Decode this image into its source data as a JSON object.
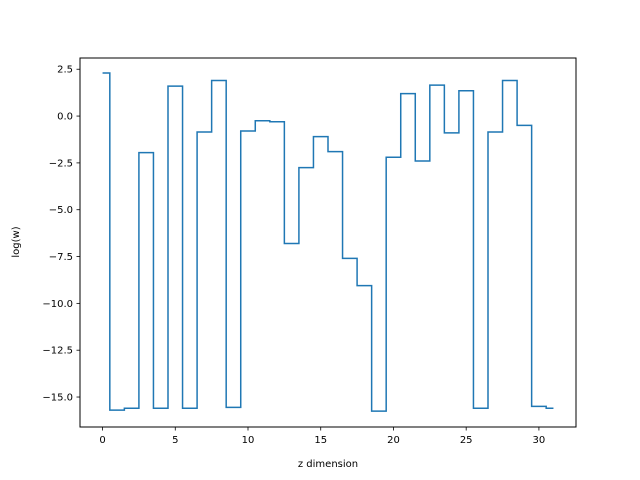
{
  "chart_data": {
    "type": "line",
    "drawstyle": "steps-mid",
    "title": "",
    "xlabel": "z dimension",
    "ylabel": "log(w)",
    "xlim": [
      -1.55,
      32.55
    ],
    "ylim": [
      -16.6,
      3.1
    ],
    "grid": false,
    "legend": "none",
    "color": "#1f77b4",
    "xticks": [
      0,
      5,
      10,
      15,
      20,
      25,
      30
    ],
    "xtick_labels": [
      "0",
      "5",
      "10",
      "15",
      "20",
      "25",
      "30"
    ],
    "yticks": [
      2.5,
      0.0,
      -2.5,
      -5.0,
      -7.5,
      -10.0,
      -12.5,
      -15.0
    ],
    "ytick_labels": [
      "2.5",
      "0.0",
      "−2.5",
      "−5.0",
      "−7.5",
      "−10.0",
      "−12.5",
      "−15.0"
    ],
    "series": [
      {
        "x": [
          0,
          1,
          2,
          3,
          4,
          5,
          6,
          7,
          8,
          9,
          10,
          11,
          12,
          13,
          14,
          15,
          16,
          17,
          18,
          19,
          20,
          21,
          22,
          23,
          24,
          25,
          26,
          27,
          28,
          29,
          30,
          31
        ],
        "values": [
          2.3,
          -15.7,
          -15.6,
          -1.95,
          -15.6,
          1.6,
          -15.6,
          -0.85,
          1.9,
          -15.55,
          -0.8,
          -0.25,
          -0.3,
          -6.8,
          -2.75,
          -1.1,
          -1.9,
          -7.6,
          -9.05,
          -15.75,
          -2.2,
          1.2,
          -2.4,
          1.65,
          -0.9,
          1.35,
          -15.6,
          -0.85,
          1.9,
          -0.5,
          -15.5,
          -15.6
        ]
      }
    ]
  }
}
